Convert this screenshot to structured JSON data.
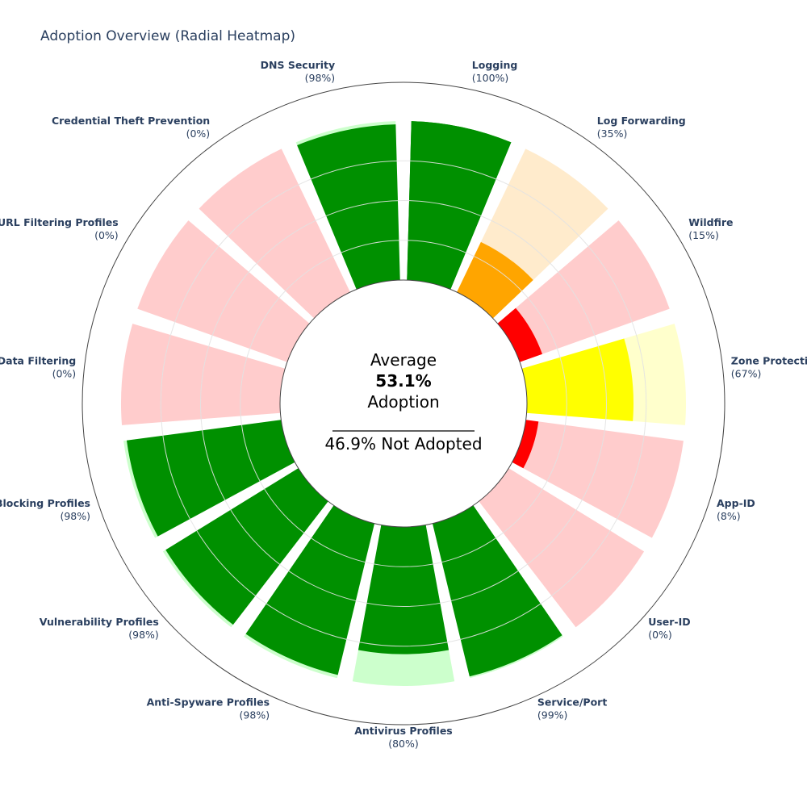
{
  "chart_data": {
    "type": "radial-heatmap",
    "title": "Adoption Overview (Radial Heatmap)",
    "center": {
      "line1": "Average",
      "value": "53.1%",
      "line3": "Adoption",
      "not_adopted": "46.9% Not Adopted"
    },
    "categories": [
      {
        "name": "Logging",
        "pct_label": "(100%)",
        "value": 100,
        "color": "#009000",
        "bg": "#009000"
      },
      {
        "name": "Log Forwarding",
        "pct_label": "(35%)",
        "value": 35,
        "color": "#ffa500",
        "bg": "#ffebcc"
      },
      {
        "name": "Wildfire",
        "pct_label": "(15%)",
        "value": 15,
        "color": "#ff0000",
        "bg": "#ffcccc"
      },
      {
        "name": "Zone Protection",
        "pct_label": "(67%)",
        "value": 67,
        "color": "#ffff00",
        "bg": "#ffffcc"
      },
      {
        "name": "App-ID",
        "pct_label": "(8%)",
        "value": 8,
        "color": "#ff0000",
        "bg": "#ffcccc"
      },
      {
        "name": "User-ID",
        "pct_label": "(0%)",
        "value": 0,
        "color": "#ff0000",
        "bg": "#ffcccc"
      },
      {
        "name": "Service/Port",
        "pct_label": "(99%)",
        "value": 99,
        "color": "#009000",
        "bg": "#ccffcc"
      },
      {
        "name": "Antivirus Profiles",
        "pct_label": "(80%)",
        "value": 80,
        "color": "#009000",
        "bg": "#ccffcc"
      },
      {
        "name": "Anti-Spyware Profiles",
        "pct_label": "(98%)",
        "value": 98,
        "color": "#009000",
        "bg": "#ccffcc"
      },
      {
        "name": "Vulnerability Profiles",
        "pct_label": "(98%)",
        "value": 98,
        "color": "#009000",
        "bg": "#ccffcc"
      },
      {
        "name": "Blocking Profiles",
        "pct_label": "(98%)",
        "value": 98,
        "color": "#009000",
        "bg": "#ccffcc"
      },
      {
        "name": "Data Filtering",
        "pct_label": "(0%)",
        "value": 0,
        "color": "#ff0000",
        "bg": "#ffcccc"
      },
      {
        "name": "URL Filtering Profiles",
        "pct_label": "(0%)",
        "value": 0,
        "color": "#ff0000",
        "bg": "#ffcccc"
      },
      {
        "name": "Credential Theft Prevention",
        "pct_label": "(0%)",
        "value": 0,
        "color": "#ff0000",
        "bg": "#ffcccc"
      },
      {
        "name": "DNS Security",
        "pct_label": "(98%)",
        "value": 98,
        "color": "#009000",
        "bg": "#ccffcc"
      }
    ],
    "radial_range": [
      0,
      100
    ],
    "grid": true,
    "legend": false
  }
}
